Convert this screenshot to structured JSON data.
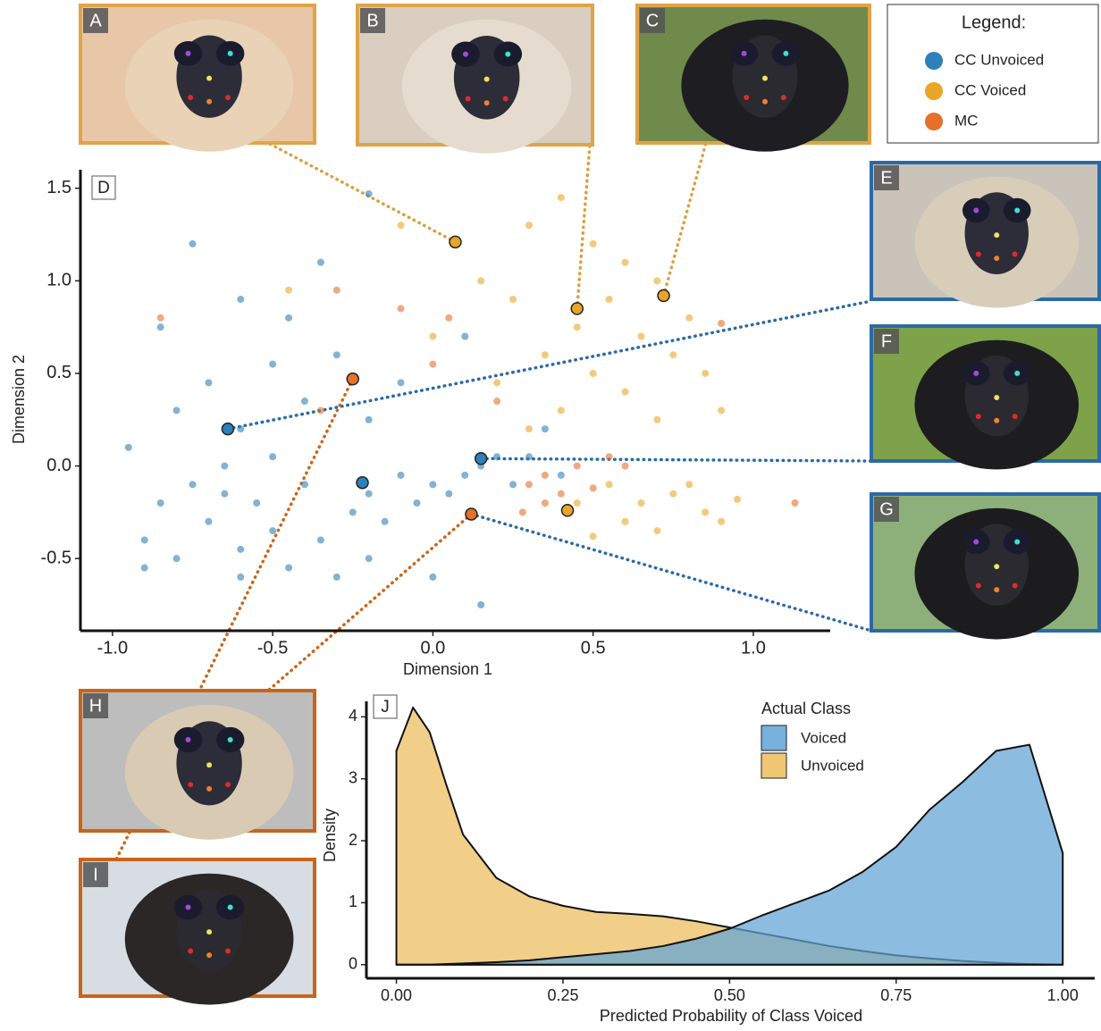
{
  "panels": [
    "A",
    "B",
    "C",
    "E",
    "F",
    "G",
    "H",
    "I"
  ],
  "chart_data": [
    {
      "type": "scatter",
      "panel_label": "D",
      "x_label": "Dimension 1",
      "y_label": "Dimension 2",
      "legend_title": "Legend:",
      "xlim": [
        -1.1,
        1.24
      ],
      "ylim": [
        -0.89,
        1.6
      ],
      "xticks": [
        {
          "value": -1,
          "label": "-1.0"
        },
        {
          "value": -0.5,
          "label": "-0.5"
        },
        {
          "value": 0,
          "label": "0.0"
        },
        {
          "value": 0.5,
          "label": "0.5"
        },
        {
          "value": 1,
          "label": "1.0"
        }
      ],
      "yticks": [
        {
          "value": -0.5,
          "label": "-0.5"
        },
        {
          "value": 0,
          "label": "0.0"
        },
        {
          "value": 0.5,
          "label": "0.5"
        },
        {
          "value": 1,
          "label": "1.0"
        },
        {
          "value": 1.5,
          "label": "1.5"
        }
      ],
      "series": [
        {
          "name": "CC Unvoiced",
          "color": "#2f7fb8",
          "x": [
            -0.9,
            -0.85,
            -0.8,
            -0.75,
            -0.7,
            -0.65,
            -0.6,
            -0.55,
            -0.5,
            -0.45,
            -0.4,
            -0.35,
            -0.3,
            -0.25,
            -0.2,
            -0.15,
            -0.1,
            -0.05,
            0.0,
            0.05,
            0.1,
            0.15,
            0.2,
            0.25,
            0.3,
            -0.95,
            -0.8,
            -0.7,
            -0.6,
            -0.5,
            -0.4,
            -0.3,
            -0.2,
            -0.6,
            -0.75,
            -0.35,
            -0.2,
            -0.45,
            0.1,
            -0.1,
            0.0,
            0.15,
            -0.2,
            -0.9,
            -0.6,
            0.35,
            0.4,
            -0.85,
            -0.65,
            -0.5
          ],
          "y": [
            -0.4,
            -0.2,
            -0.5,
            -0.1,
            -0.3,
            0.0,
            -0.45,
            -0.2,
            -0.35,
            -0.55,
            -0.1,
            -0.4,
            -0.6,
            -0.25,
            -0.15,
            -0.3,
            -0.05,
            -0.2,
            -0.1,
            -0.15,
            -0.05,
            0.0,
            0.05,
            -0.1,
            0.05,
            0.1,
            0.3,
            0.45,
            0.2,
            0.55,
            0.35,
            0.6,
            0.25,
            0.9,
            1.2,
            1.1,
            1.47,
            0.8,
            0.7,
            0.45,
            -0.6,
            -0.75,
            -0.5,
            -0.55,
            -0.6,
            0.2,
            -0.05,
            0.75,
            -0.15,
            0.05
          ]
        },
        {
          "name": "CC Voiced",
          "color": "#eaa526",
          "x": [
            0.3,
            0.4,
            0.5,
            0.6,
            0.7,
            0.55,
            0.45,
            0.35,
            0.65,
            0.75,
            0.8,
            0.85,
            0.9,
            0.6,
            0.5,
            0.4,
            0.25,
            0.15,
            0.0,
            0.3,
            0.55,
            0.65,
            0.75,
            0.85,
            0.95,
            0.7,
            0.6,
            0.45,
            0.8,
            0.9,
            0.5,
            -0.45,
            -0.1,
            0.2,
            0.7
          ],
          "y": [
            1.3,
            1.45,
            1.2,
            1.1,
            1.0,
            0.9,
            0.75,
            0.6,
            0.7,
            0.6,
            0.8,
            0.5,
            0.3,
            0.4,
            0.5,
            0.3,
            0.9,
            1.0,
            0.7,
            0.2,
            -0.1,
            -0.2,
            -0.15,
            -0.25,
            -0.18,
            -0.35,
            -0.3,
            -0.2,
            -0.1,
            -0.3,
            -0.38,
            0.95,
            1.3,
            0.45,
            0.25
          ]
        },
        {
          "name": "MC",
          "color": "#e4702a",
          "x": [
            0.3,
            0.35,
            0.4,
            0.45,
            0.5,
            0.55,
            0.35,
            0.28,
            0.6,
            -0.1,
            0.05,
            -0.3,
            -0.85,
            1.13,
            0.2,
            0.0,
            -0.35,
            0.9
          ],
          "y": [
            -0.1,
            -0.05,
            -0.15,
            0.0,
            -0.12,
            0.05,
            -0.2,
            -0.25,
            0.0,
            0.85,
            0.8,
            0.95,
            0.8,
            -0.2,
            0.35,
            0.55,
            0.3,
            0.77
          ]
        }
      ],
      "highlighted": {
        "x": [
          0.07,
          0.45,
          0.72,
          -0.64,
          0.15,
          0.12,
          -0.22,
          0.42,
          -0.25
        ],
        "y": [
          1.21,
          0.85,
          0.92,
          0.2,
          0.04,
          -0.26,
          -0.09,
          -0.24,
          0.47
        ],
        "colors": [
          "#eaa526",
          "#eaa526",
          "#eaa526",
          "#2f7fb8",
          "#2f7fb8",
          "#e4702a",
          "#2f7fb8",
          "#eaa526",
          "#e4702a"
        ]
      }
    },
    {
      "type": "density",
      "panel_label": "J",
      "x_label": "Predicted Probability of Class Voiced",
      "y_label": "Density",
      "legend_title": "Actual Class",
      "xlim": [
        -0.045,
        1.048
      ],
      "ylim": [
        -0.22,
        4.25
      ],
      "xticks": [
        {
          "value": 0,
          "label": "0.00"
        },
        {
          "value": 0.25,
          "label": "0.25"
        },
        {
          "value": 0.5,
          "label": "0.50"
        },
        {
          "value": 0.75,
          "label": "0.75"
        },
        {
          "value": 1,
          "label": "1.00"
        }
      ],
      "yticks": [
        0,
        1,
        2,
        3,
        4
      ],
      "x": [
        0,
        0.025,
        0.05,
        0.075,
        0.1,
        0.15,
        0.2,
        0.25,
        0.3,
        0.35,
        0.4,
        0.45,
        0.5,
        0.55,
        0.6,
        0.65,
        0.7,
        0.75,
        0.8,
        0.85,
        0.9,
        0.95,
        1.0
      ],
      "series": [
        {
          "name": "Voiced",
          "color": "#5fa3d6",
          "values": [
            0.0,
            0.0,
            0.0,
            0.01,
            0.02,
            0.04,
            0.07,
            0.12,
            0.17,
            0.22,
            0.3,
            0.42,
            0.58,
            0.8,
            1.0,
            1.2,
            1.5,
            1.9,
            2.5,
            2.95,
            3.45,
            3.55,
            1.8
          ]
        },
        {
          "name": "Unvoiced",
          "color": "#ecbd5c",
          "values": [
            3.45,
            4.15,
            3.75,
            2.9,
            2.1,
            1.4,
            1.1,
            0.95,
            0.85,
            0.82,
            0.78,
            0.7,
            0.6,
            0.5,
            0.4,
            0.3,
            0.22,
            0.15,
            0.1,
            0.06,
            0.03,
            0.01,
            0.0
          ]
        }
      ]
    }
  ]
}
